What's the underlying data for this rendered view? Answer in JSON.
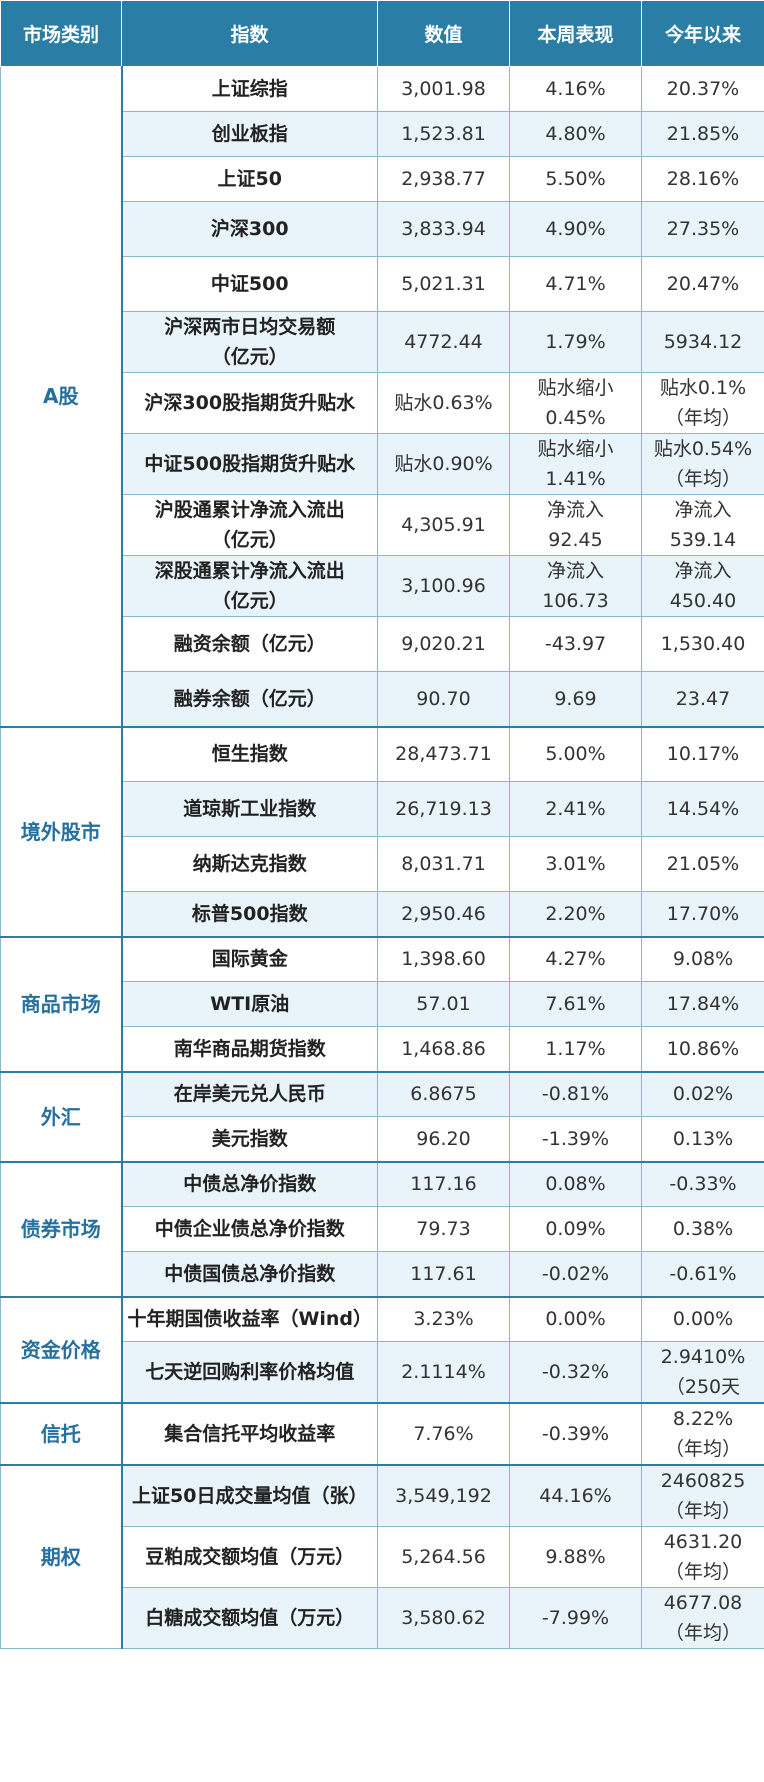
{
  "headers": [
    "市场类别",
    "指数",
    "数值",
    "本周表现",
    "今年以来"
  ],
  "groups": [
    {
      "category": "A股",
      "rows": [
        {
          "name": "上证综指",
          "value": "3,001.98",
          "week": "4.16%",
          "ytd": "20.37%"
        },
        {
          "name": "创业板指",
          "value": "1,523.81",
          "week": "4.80%",
          "ytd": "21.85%"
        },
        {
          "name": "上证50",
          "value": "2,938.77",
          "week": "5.50%",
          "ytd": "28.16%"
        },
        {
          "name": "沪深300",
          "value": "3,833.94",
          "week": "4.90%",
          "ytd": "27.35%"
        },
        {
          "name": "中证500",
          "value": "5,021.31",
          "week": "4.71%",
          "ytd": "20.47%"
        },
        {
          "name": "沪深两市日均交易额\n（亿元）",
          "value": "4772.44",
          "week": "1.79%",
          "ytd": "5934.12"
        },
        {
          "name": "沪深300股指期货升贴水",
          "value": "贴水0.63%",
          "week": "贴水缩小\n0.45%",
          "ytd": "贴水0.1%\n（年均）"
        },
        {
          "name": "中证500股指期货升贴水",
          "value": "贴水0.90%",
          "week": "贴水缩小\n1.41%",
          "ytd": "贴水0.54%\n（年均）"
        },
        {
          "name": "沪股通累计净流入流出\n（亿元）",
          "value": "4,305.91",
          "week": "净流入\n92.45",
          "ytd": "净流入\n539.14"
        },
        {
          "name": "深股通累计净流入流出\n（亿元）",
          "value": "3,100.96",
          "week": "净流入\n106.73",
          "ytd": "净流入\n450.40"
        },
        {
          "name": "融资余额（亿元）",
          "value": "9,020.21",
          "week": "-43.97",
          "ytd": "1,530.40"
        },
        {
          "name": "融券余额（亿元）",
          "value": "90.70",
          "week": "9.69",
          "ytd": "23.47"
        }
      ]
    },
    {
      "category": "境外股市",
      "rows": [
        {
          "name": "恒生指数",
          "value": "28,473.71",
          "week": "5.00%",
          "ytd": "10.17%"
        },
        {
          "name": "道琼斯工业指数",
          "value": "26,719.13",
          "week": "2.41%",
          "ytd": "14.54%"
        },
        {
          "name": "纳斯达克指数",
          "value": "8,031.71",
          "week": "3.01%",
          "ytd": "21.05%"
        },
        {
          "name": "标普500指数",
          "value": "2,950.46",
          "week": "2.20%",
          "ytd": "17.70%"
        }
      ]
    },
    {
      "category": "商品市场",
      "rows": [
        {
          "name": "国际黄金",
          "value": "1,398.60",
          "week": "4.27%",
          "ytd": "9.08%"
        },
        {
          "name": "WTI原油",
          "value": "57.01",
          "week": "7.61%",
          "ytd": "17.84%"
        },
        {
          "name": "南华商品期货指数",
          "value": "1,468.86",
          "week": "1.17%",
          "ytd": "10.86%"
        }
      ]
    },
    {
      "category": "外汇",
      "rows": [
        {
          "name": "在岸美元兑人民币",
          "value": "6.8675",
          "week": "-0.81%",
          "ytd": "0.02%"
        },
        {
          "name": "美元指数",
          "value": "96.20",
          "week": "-1.39%",
          "ytd": "0.13%"
        }
      ]
    },
    {
      "category": "债券市场",
      "rows": [
        {
          "name": "中债总净价指数",
          "value": "117.16",
          "week": "0.08%",
          "ytd": "-0.33%"
        },
        {
          "name": "中债企业债总净价指数",
          "value": "79.73",
          "week": "0.09%",
          "ytd": "0.38%"
        },
        {
          "name": "中债国债总净价指数",
          "value": "117.61",
          "week": "-0.02%",
          "ytd": "-0.61%"
        }
      ]
    },
    {
      "category": "资金价格",
      "rows": [
        {
          "name": "十年期国债收益率（Wind）",
          "value": "3.23%",
          "week": "0.00%",
          "ytd": "0.00%"
        },
        {
          "name": "七天逆回购利率价格均值",
          "value": "2.1114%",
          "week": "-0.32%",
          "ytd": "2.9410%\n（250天"
        }
      ]
    },
    {
      "category": "信托",
      "rows": [
        {
          "name": "集合信托平均收益率",
          "value": "7.76%",
          "week": "-0.39%",
          "ytd": "8.22%\n（年均）"
        }
      ]
    },
    {
      "category": "期权",
      "rows": [
        {
          "name": "上证50日成交量均值（张）",
          "value": "3,549,192",
          "week": "44.16%",
          "ytd": "2460825\n（年均）"
        },
        {
          "name": "豆粕成交额均值（万元）",
          "value": "5,264.56",
          "week": "9.88%",
          "ytd": "4631.20\n（年均）"
        },
        {
          "name": "白糖成交额均值（万元）",
          "value": "3,580.62",
          "week": "-7.99%",
          "ytd": "4677.08\n（年均）"
        }
      ]
    }
  ]
}
